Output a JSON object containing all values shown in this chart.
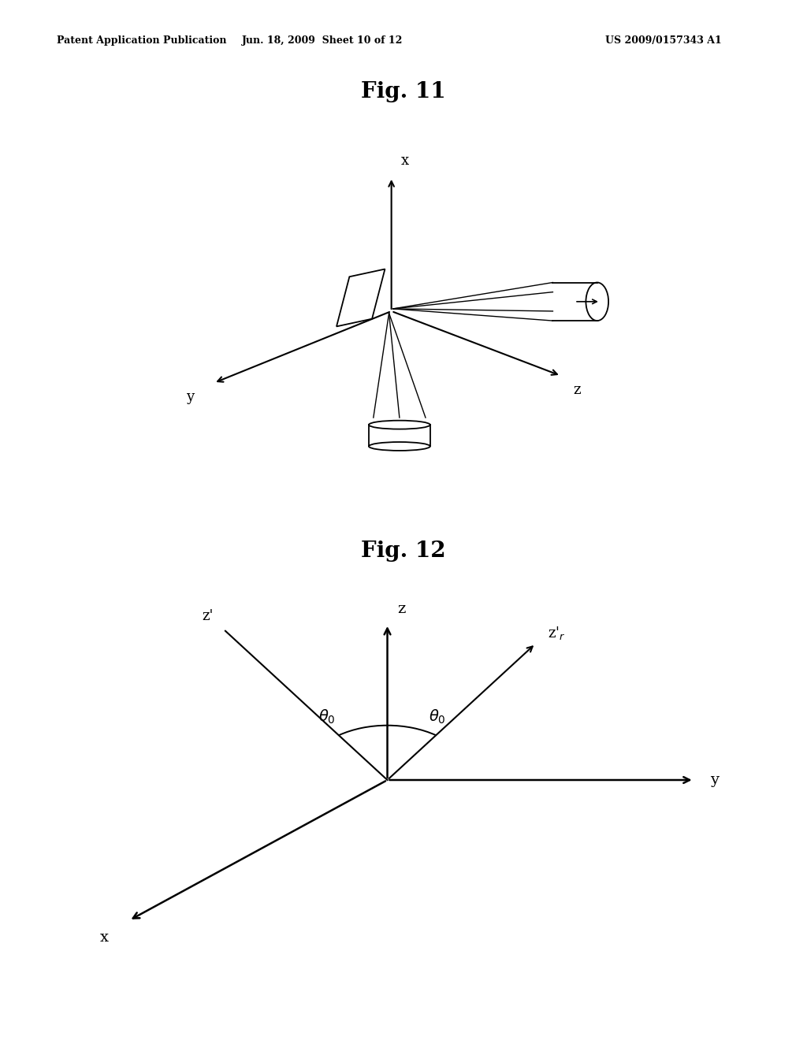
{
  "fig11_title": "Fig. 11",
  "fig12_title": "Fig. 12",
  "header_left": "Patent Application Publication",
  "header_mid": "Jun. 18, 2009  Sheet 10 of 12",
  "header_right": "US 2009/0157343 A1",
  "bg_color": "#ffffff",
  "line_color": "#000000"
}
